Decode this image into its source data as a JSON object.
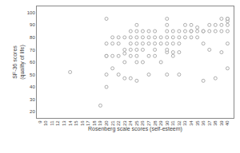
{
  "chart_data": {
    "type": "scatter",
    "xlabel": "Rosenberg scale scores (self-esteem)",
    "ylabel": "SF-36 scores\n(quality of life)",
    "x": [
      14,
      19,
      20,
      20,
      20,
      20,
      20,
      20,
      21,
      21,
      21,
      21,
      22,
      22,
      22,
      22,
      23,
      23,
      23,
      23,
      23,
      24,
      24,
      24,
      24,
      24,
      24,
      25,
      25,
      25,
      25,
      25,
      25,
      25,
      25,
      26,
      26,
      26,
      26,
      26,
      27,
      27,
      27,
      27,
      27,
      28,
      28,
      28,
      28,
      28,
      29,
      29,
      29,
      30,
      30,
      30,
      30,
      30,
      30,
      30,
      30,
      31,
      31,
      31,
      31,
      31,
      32,
      32,
      32,
      32,
      32,
      33,
      33,
      33,
      34,
      34,
      34,
      34,
      35,
      35,
      35,
      36,
      36,
      36,
      36,
      37,
      37,
      37,
      38,
      38,
      38,
      39,
      39,
      39,
      39,
      40,
      40,
      40,
      40,
      40,
      40,
      40
    ],
    "values": [
      52,
      25,
      40,
      50,
      65,
      65,
      75,
      95,
      55,
      65,
      75,
      80,
      50,
      65,
      75,
      80,
      47,
      60,
      67,
      70,
      80,
      47,
      65,
      70,
      75,
      80,
      85,
      45,
      60,
      65,
      70,
      75,
      80,
      85,
      90,
      60,
      70,
      75,
      80,
      85,
      50,
      65,
      75,
      80,
      85,
      65,
      70,
      75,
      80,
      85,
      60,
      75,
      80,
      50,
      68,
      70,
      75,
      80,
      85,
      90,
      95,
      65,
      68,
      75,
      80,
      85,
      50,
      68,
      75,
      80,
      85,
      80,
      85,
      90,
      80,
      85,
      85,
      90,
      80,
      85,
      88,
      45,
      75,
      85,
      85,
      70,
      85,
      90,
      47,
      85,
      90,
      68,
      85,
      90,
      95,
      55,
      75,
      85,
      90,
      93,
      95,
      95
    ],
    "xlim": [
      8.5,
      41
    ],
    "ylim": [
      15,
      105
    ],
    "xticks": [
      9,
      10,
      11,
      12,
      13,
      14,
      15,
      16,
      17,
      18,
      19,
      20,
      21,
      22,
      23,
      24,
      25,
      26,
      27,
      28,
      29,
      30,
      31,
      32,
      33,
      34,
      35,
      36,
      37,
      38,
      39,
      40
    ],
    "yticks": [
      20,
      30,
      40,
      50,
      60,
      70,
      80,
      90,
      100
    ],
    "color": "#999999",
    "marker": "circle",
    "grid": false
  }
}
